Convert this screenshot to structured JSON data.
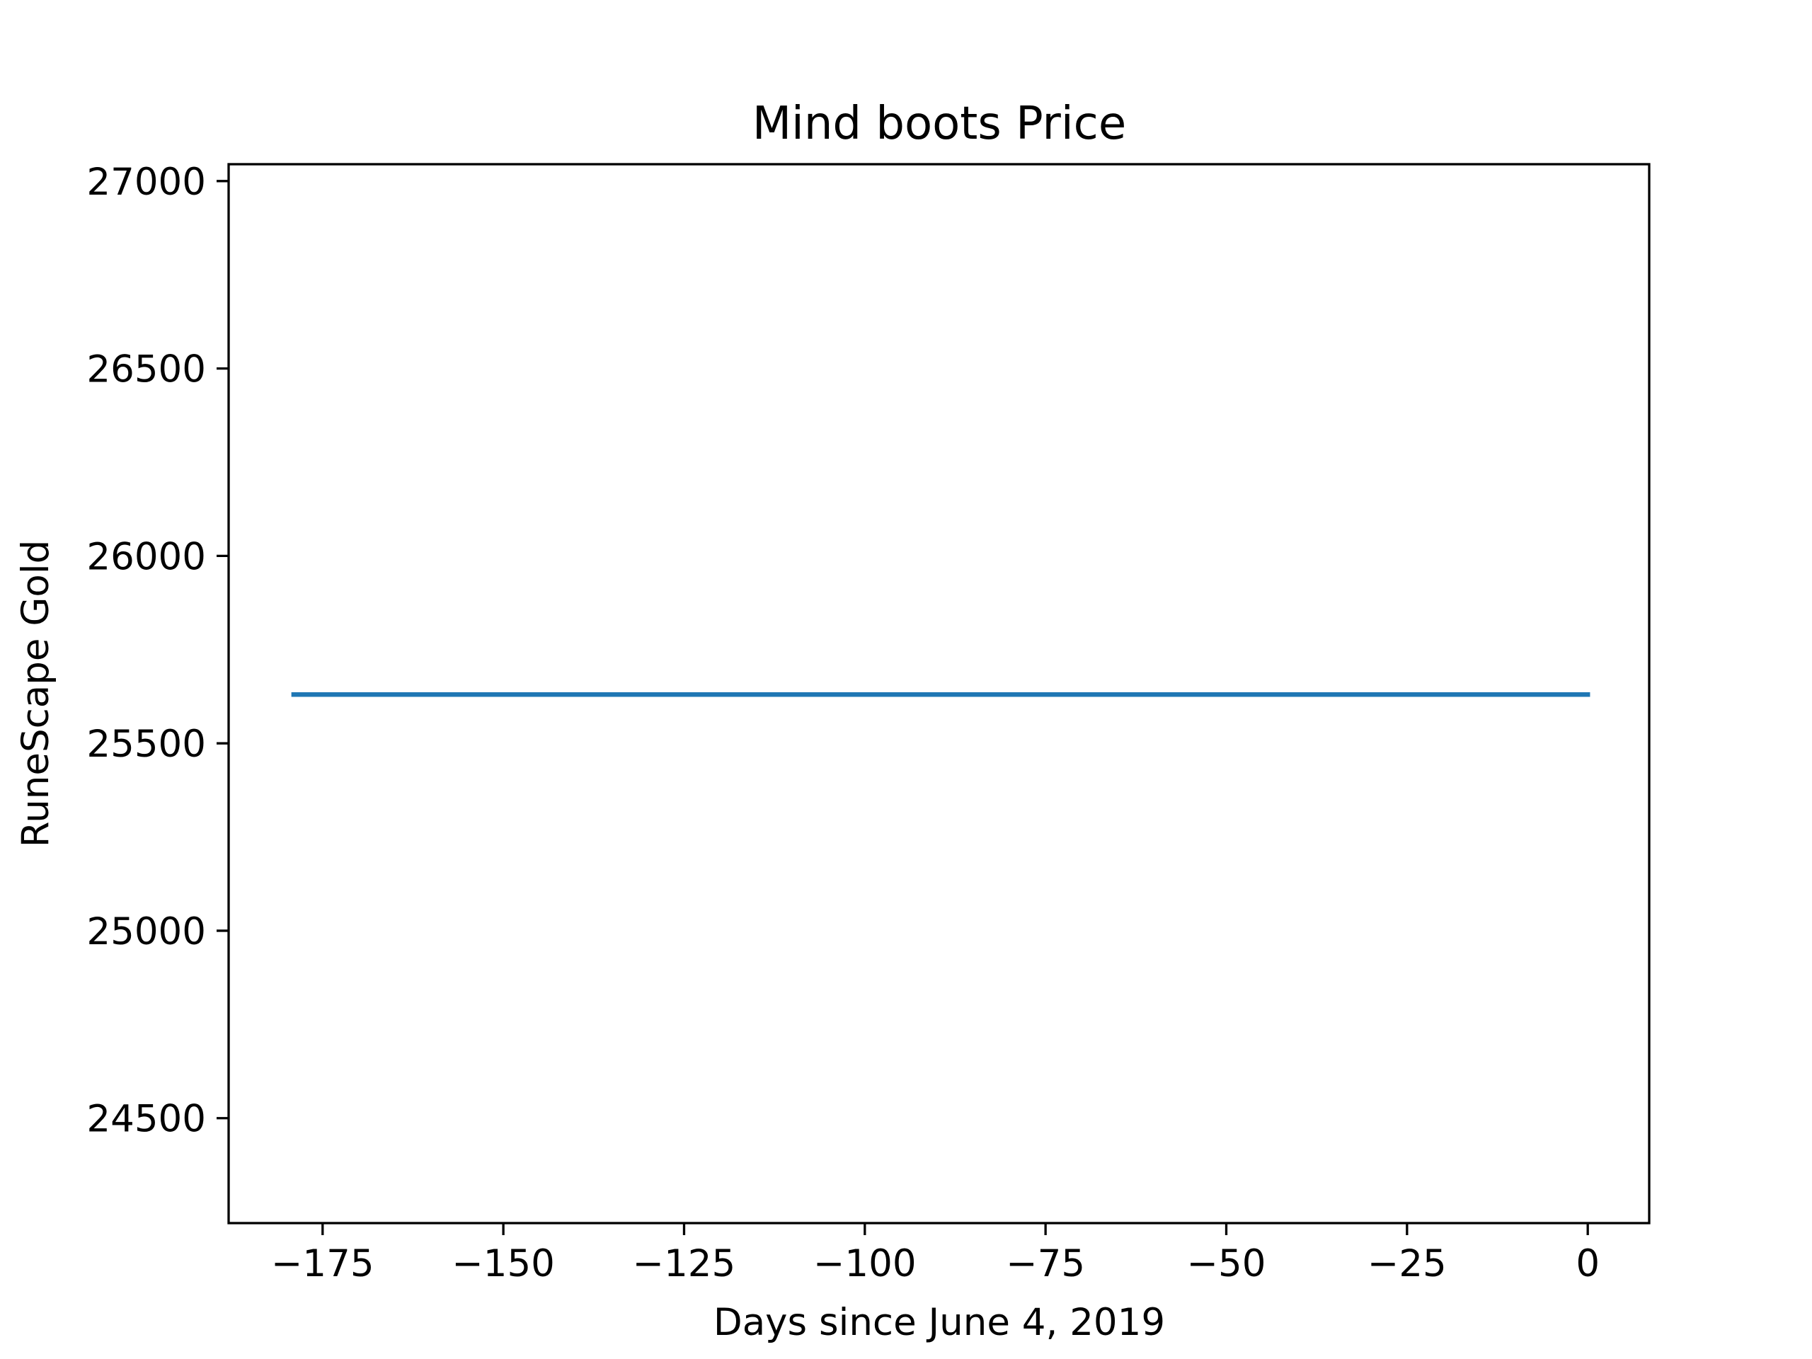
{
  "chart_data": {
    "type": "line",
    "title": "Mind boots Price",
    "xlabel": "Days since June 4, 2019",
    "ylabel": "RuneScape Gold",
    "xlim": [
      -188,
      8.5
    ],
    "ylim": [
      24220,
      27045
    ],
    "xticks": [
      -175,
      -150,
      -125,
      -100,
      -75,
      -50,
      -25,
      0
    ],
    "xtick_labels": [
      "−175",
      "−150",
      "−125",
      "−100",
      "−75",
      "−50",
      "−25",
      "0"
    ],
    "yticks": [
      24500,
      25000,
      25500,
      26000,
      26500,
      27000
    ],
    "ytick_labels": [
      "24500",
      "25000",
      "25500",
      "26000",
      "26500",
      "27000"
    ],
    "grid": false,
    "series": [
      {
        "color": "#1f77b4",
        "x": [
          -179,
          0
        ],
        "y": [
          25630,
          25630
        ]
      }
    ]
  }
}
